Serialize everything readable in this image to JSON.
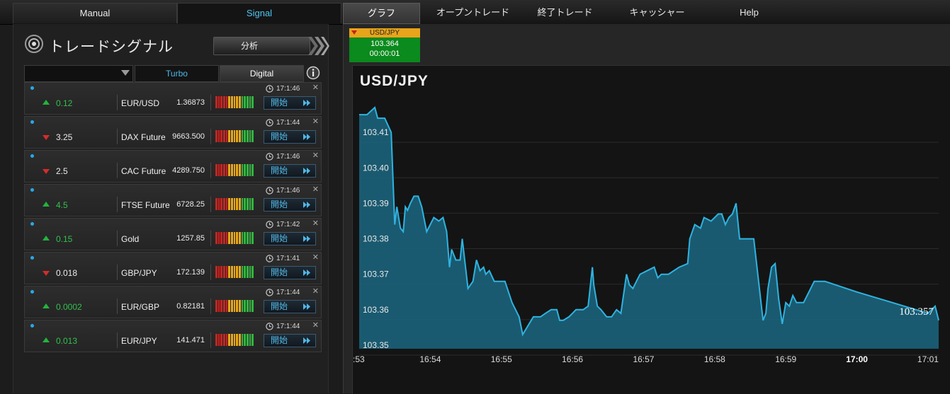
{
  "nav": {
    "manual": "Manual",
    "signal": "Signal",
    "graph": "グラフ",
    "open_trades": "オープントレード",
    "closed_trades": "終了トレード",
    "cashier": "キャッシャー",
    "help": "Help"
  },
  "panel": {
    "title": "トレードシグナル",
    "analysis_button": "分析",
    "tab_turbo": "Turbo",
    "tab_digital": "Digital"
  },
  "colors": {
    "up": "#23b33c",
    "down": "#d42c2c",
    "accent": "#4fb8e8",
    "chart_line": "#2fb3e0",
    "chart_fill": "#1b6178"
  },
  "signals": [
    {
      "direction": "up",
      "change": "0.12",
      "asset": "EUR/USD",
      "price": "1.36873",
      "time": "17:1:46",
      "start": "開始"
    },
    {
      "direction": "down",
      "change": "3.25",
      "asset": "DAX Future",
      "price": "9663.500",
      "time": "17:1:44",
      "start": "開始"
    },
    {
      "direction": "down",
      "change": "2.5",
      "asset": "CAC Future",
      "price": "4289.750",
      "time": "17:1:46",
      "start": "開始"
    },
    {
      "direction": "up",
      "change": "4.5",
      "asset": "FTSE Future",
      "price": "6728.25",
      "time": "17:1:46",
      "start": "開始"
    },
    {
      "direction": "up",
      "change": "0.15",
      "asset": "Gold",
      "price": "1257.85",
      "time": "17:1:42",
      "start": "開始"
    },
    {
      "direction": "down",
      "change": "0.018",
      "asset": "GBP/JPY",
      "price": "172.139",
      "time": "17:1:41",
      "start": "開始"
    },
    {
      "direction": "up",
      "change": "0.0002",
      "asset": "EUR/GBP",
      "price": "0.82181",
      "time": "17:1:44",
      "start": "開始"
    },
    {
      "direction": "up",
      "change": "0.013",
      "asset": "EUR/JPY",
      "price": "141.471",
      "time": "17:1:44",
      "start": "開始"
    }
  ],
  "asset_tab": {
    "label": "USD/JPY",
    "price": "103.364",
    "timer": "00:00:01"
  },
  "chart": {
    "title": "USD/JPY",
    "current_price_label": "103.357"
  },
  "chart_data": {
    "type": "area",
    "title": "USD/JPY",
    "xlabel": "",
    "ylabel": "",
    "ylim": [
      103.349,
      103.419
    ],
    "y_ticks": [
      "103.41",
      "103.40",
      "103.39",
      "103.38",
      "103.37",
      "103.36",
      "103.35"
    ],
    "y_tick_values": [
      103.41,
      103.4,
      103.39,
      103.38,
      103.37,
      103.36,
      103.35
    ],
    "x_ticks": [
      ":53",
      "16:54",
      "16:55",
      "16:56",
      "16:57",
      "16:58",
      "16:59",
      "17:00",
      "17:01"
    ],
    "x_tick_values": [
      0,
      1,
      2,
      3,
      4,
      5,
      6,
      7,
      8
    ],
    "bold_tick": "17:00",
    "xlim": [
      0,
      8.15
    ],
    "x": [
      0,
      0.11,
      0.22,
      0.26,
      0.36,
      0.45,
      0.5,
      0.53,
      0.58,
      0.62,
      0.65,
      0.68,
      0.72,
      0.77,
      0.83,
      0.88,
      0.95,
      1.05,
      1.12,
      1.18,
      1.23,
      1.27,
      1.3,
      1.36,
      1.42,
      1.45,
      1.53,
      1.6,
      1.65,
      1.7,
      1.75,
      1.78,
      1.83,
      1.9,
      1.95,
      2.05,
      2.15,
      2.25,
      2.3,
      2.45,
      2.55,
      2.62,
      2.7,
      2.78,
      2.82,
      2.87,
      2.95,
      3.0,
      3.05,
      3.15,
      3.22,
      3.28,
      3.3,
      3.35,
      3.4,
      3.48,
      3.55,
      3.62,
      3.68,
      3.76,
      3.8,
      3.85,
      3.9,
      3.95,
      4.05,
      4.15,
      4.2,
      4.25,
      4.35,
      4.5,
      4.62,
      4.65,
      4.72,
      4.8,
      4.85,
      4.95,
      5.05,
      5.1,
      5.15,
      5.2,
      5.25,
      5.3,
      5.35,
      5.4,
      5.45,
      5.55,
      5.68,
      5.72,
      5.75,
      5.8,
      5.85,
      5.9,
      5.95,
      6.0,
      6.05,
      6.1,
      6.15,
      6.25,
      6.4,
      6.5,
      6.55,
      7.0,
      7.5,
      8.0,
      8.1,
      8.15
    ],
    "values": [
      103.415,
      103.415,
      103.417,
      103.414,
      103.414,
      103.41,
      103.384,
      103.389,
      103.383,
      103.382,
      103.389,
      103.388,
      103.39,
      103.392,
      103.392,
      103.389,
      103.382,
      103.386,
      103.385,
      103.386,
      103.382,
      103.372,
      103.377,
      103.374,
      103.374,
      103.38,
      103.366,
      103.368,
      103.374,
      103.371,
      103.372,
      103.37,
      103.371,
      103.368,
      103.368,
      103.368,
      103.362,
      103.358,
      103.353,
      103.358,
      103.358,
      103.359,
      103.36,
      103.36,
      103.357,
      103.357,
      103.358,
      103.359,
      103.36,
      103.36,
      103.361,
      103.372,
      103.367,
      103.361,
      103.36,
      103.358,
      103.358,
      103.36,
      103.359,
      103.37,
      103.367,
      103.366,
      103.368,
      103.37,
      103.371,
      103.372,
      103.369,
      103.37,
      103.37,
      103.372,
      103.373,
      103.38,
      103.384,
      103.383,
      103.386,
      103.385,
      103.387,
      103.387,
      103.384,
      103.386,
      103.387,
      103.39,
      103.38,
      103.38,
      103.38,
      103.38,
      103.357,
      103.359,
      103.366,
      103.372,
      103.373,
      103.363,
      103.356,
      103.362,
      103.361,
      103.364,
      103.362,
      103.362,
      103.368,
      103.368,
      103.368,
      103.365,
      103.362,
      103.359,
      103.361,
      103.357
    ]
  }
}
